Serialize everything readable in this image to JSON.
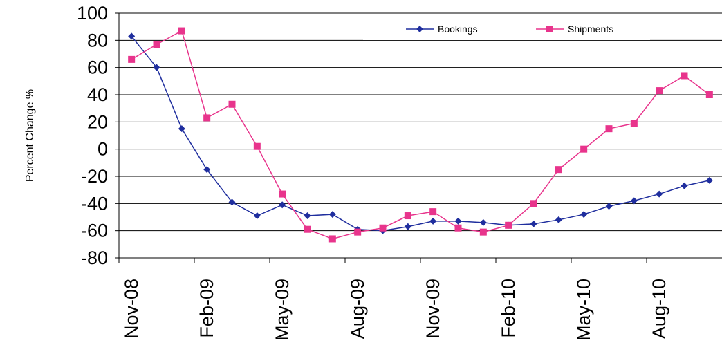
{
  "chart_data": {
    "type": "line",
    "title": "",
    "xlabel": "",
    "ylabel": "Percent Change %",
    "ylim": [
      -80,
      100
    ],
    "yticks": [
      100,
      80,
      60,
      40,
      20,
      0,
      -20,
      -40,
      -60,
      -80
    ],
    "grid": "horizontal",
    "legend_position": "top-right",
    "x": [
      "Nov-08",
      "Dec-08",
      "Jan-09",
      "Feb-09",
      "Mar-09",
      "Apr-09",
      "May-09",
      "Jun-09",
      "Jul-09",
      "Aug-09",
      "Sep-09",
      "Oct-09",
      "Nov-09",
      "Dec-09",
      "Jan-10",
      "Feb-10",
      "Mar-10",
      "Apr-10",
      "May-10",
      "Jun-10",
      "Jul-10",
      "Aug-10",
      "Sep-10",
      "Oct-10"
    ],
    "x_tick_labels": [
      "Nov-08",
      "Feb-09",
      "May-09",
      "Aug-09",
      "Nov-09",
      "Feb-10",
      "May-10",
      "Aug-10"
    ],
    "series": [
      {
        "name": "Bookings",
        "color": "#1F2E9E",
        "marker": "diamond",
        "values": [
          83,
          60,
          15,
          -15,
          -39,
          -49,
          -41,
          -49,
          -48,
          -59,
          -60,
          -57,
          -53,
          -53,
          -54,
          -56,
          -55,
          -52,
          -48,
          -42,
          -38,
          -33,
          -27,
          -23
        ]
      },
      {
        "name": "Shipments",
        "color": "#E8348C",
        "marker": "square",
        "values": [
          66,
          77,
          87,
          23,
          33,
          2,
          -33,
          -59,
          -66,
          -61,
          -58,
          -49,
          -46,
          -58,
          -61,
          -56,
          -40,
          -15,
          0,
          15,
          19,
          43,
          54,
          40
        ]
      }
    ]
  }
}
